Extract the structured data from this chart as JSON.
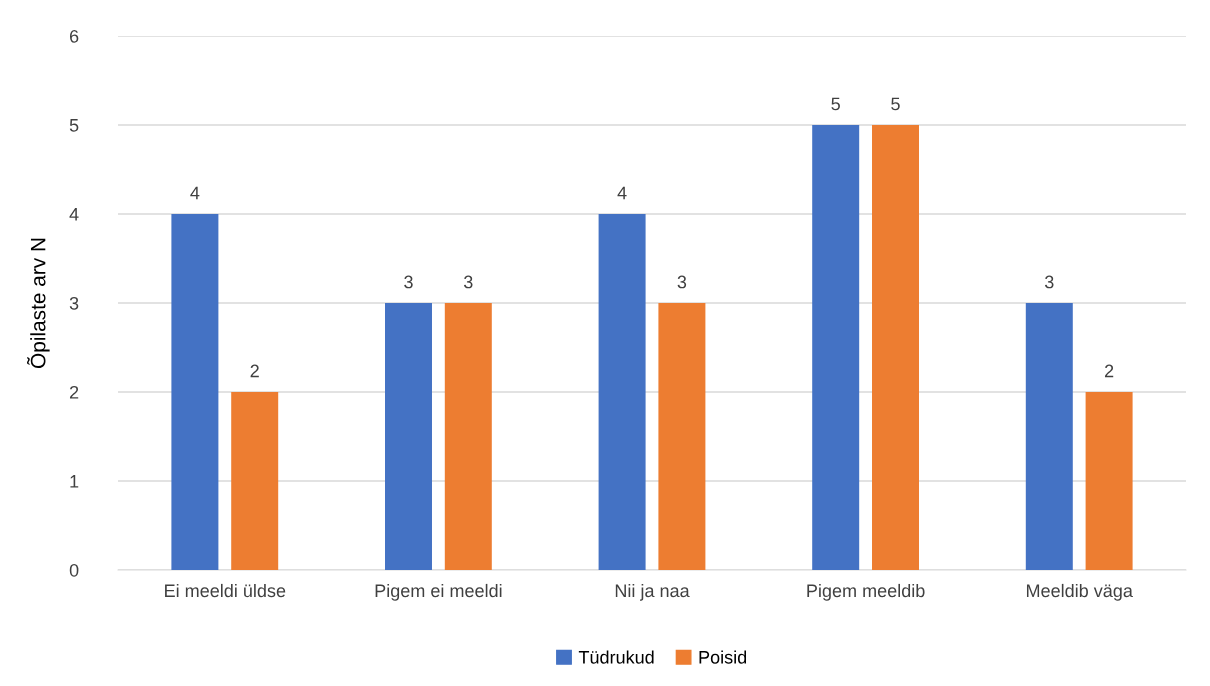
{
  "chart_data": {
    "type": "bar",
    "ylabel": "Õpilaste arv N",
    "categories": [
      "Ei meeldi üldse",
      "Pigem ei meeldi",
      "Nii ja naa",
      "Pigem meeldib",
      "Meeldib väga"
    ],
    "series": [
      {
        "name": "Tüdrukud",
        "color": "#4472c4",
        "values": [
          4,
          3,
          4,
          5,
          3
        ]
      },
      {
        "name": "Poisid",
        "color": "#ed7d31",
        "values": [
          2,
          3,
          3,
          5,
          2
        ]
      }
    ],
    "ylim": [
      0,
      6
    ],
    "yticks": [
      0,
      1,
      2,
      3,
      4,
      5,
      6
    ],
    "grid": "y",
    "legend": "bottom",
    "data_labels": true
  }
}
